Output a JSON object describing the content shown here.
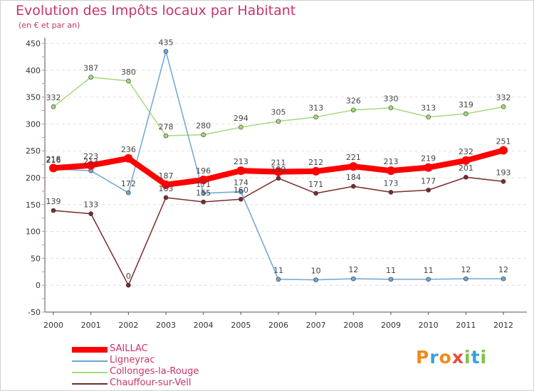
{
  "header": {
    "title": "Evolution des Impôts locaux par Habitant",
    "subtitle": "(en € et par an)"
  },
  "logo": {
    "letters": [
      "P",
      "r",
      "o",
      "x",
      "i",
      "t",
      "i"
    ],
    "colors": [
      "#f08a1c",
      "#3aa0d8",
      "#f08a1c",
      "#e84c3d",
      "#7dc243",
      "#3aa0d8",
      "#7dc243"
    ]
  },
  "chart_data": {
    "type": "line",
    "title": "Evolution des Impôts locaux par Habitant",
    "subtitle": "(en € et par an)",
    "xlabel": "",
    "ylabel": "",
    "x": [
      "2000",
      "2001",
      "2002",
      "2003",
      "2004",
      "2005",
      "2006",
      "2007",
      "2008",
      "2009",
      "2010",
      "2011",
      "2012"
    ],
    "ylim": [
      -50,
      450
    ],
    "yticks": [
      "-50",
      "0",
      "50",
      "100",
      "150",
      "200",
      "250",
      "300",
      "350",
      "400",
      "450"
    ],
    "grid": "horizontal-dashed",
    "legend": "bottom-left",
    "series": [
      {
        "name": "SAILLAC",
        "color": "#ff0000",
        "width": 8,
        "values": [
          218,
          223,
          236,
          187,
          196,
          213,
          211,
          212,
          221,
          213,
          219,
          232,
          251
        ],
        "labels": [
          "218",
          "223",
          "236",
          "187",
          "196",
          "213",
          "211",
          "212",
          "221",
          "213",
          "219",
          "232",
          "251"
        ]
      },
      {
        "name": "Ligneyrac",
        "color": "#6ea6d3",
        "width": 1.5,
        "values": [
          216,
          213,
          172,
          435,
          171,
          174,
          11,
          10,
          12,
          11,
          11,
          12,
          12
        ],
        "labels": [
          "216",
          "213",
          "172",
          "435",
          "171",
          "174",
          "11",
          "10",
          "12",
          "11",
          "11",
          "12",
          "12"
        ]
      },
      {
        "name": "Collonges-la-Rouge",
        "color": "#a4d97b",
        "width": 1.5,
        "values": [
          332,
          387,
          380,
          278,
          280,
          294,
          305,
          313,
          326,
          330,
          313,
          319,
          332
        ],
        "labels": [
          "332",
          "387",
          "380",
          "278",
          "280",
          "294",
          "305",
          "313",
          "326",
          "330",
          "313",
          "319",
          "332"
        ]
      },
      {
        "name": "Chauffour-sur-Vell",
        "color": "#7a2b2b",
        "width": 1.5,
        "values": [
          139,
          133,
          0,
          163,
          155,
          160,
          199,
          171,
          184,
          173,
          177,
          201,
          193
        ],
        "labels": [
          "139",
          "133",
          "0",
          "163",
          "155",
          "160",
          "199",
          "171",
          "184",
          "173",
          "177",
          "201",
          "193"
        ]
      }
    ]
  }
}
